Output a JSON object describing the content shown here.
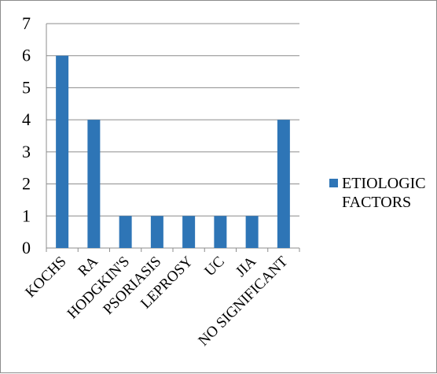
{
  "chart_data": {
    "type": "bar",
    "categories": [
      "KOCHS",
      "RA",
      "HODGKIN'S",
      "PSORIASIS",
      "LEPROSY",
      "UC",
      "JIA",
      "NO SIGNIFICANT"
    ],
    "series": [
      {
        "name": "ETIOLOGIC FACTORS",
        "values": [
          6,
          4,
          1,
          1,
          1,
          1,
          1,
          4
        ],
        "color": "#2e75b6"
      }
    ],
    "title": "",
    "xlabel": "",
    "ylabel": "",
    "ylim": [
      0,
      7
    ],
    "yticks": [
      0,
      1,
      2,
      3,
      4,
      5,
      6,
      7
    ],
    "grid": true,
    "legend": "right"
  }
}
